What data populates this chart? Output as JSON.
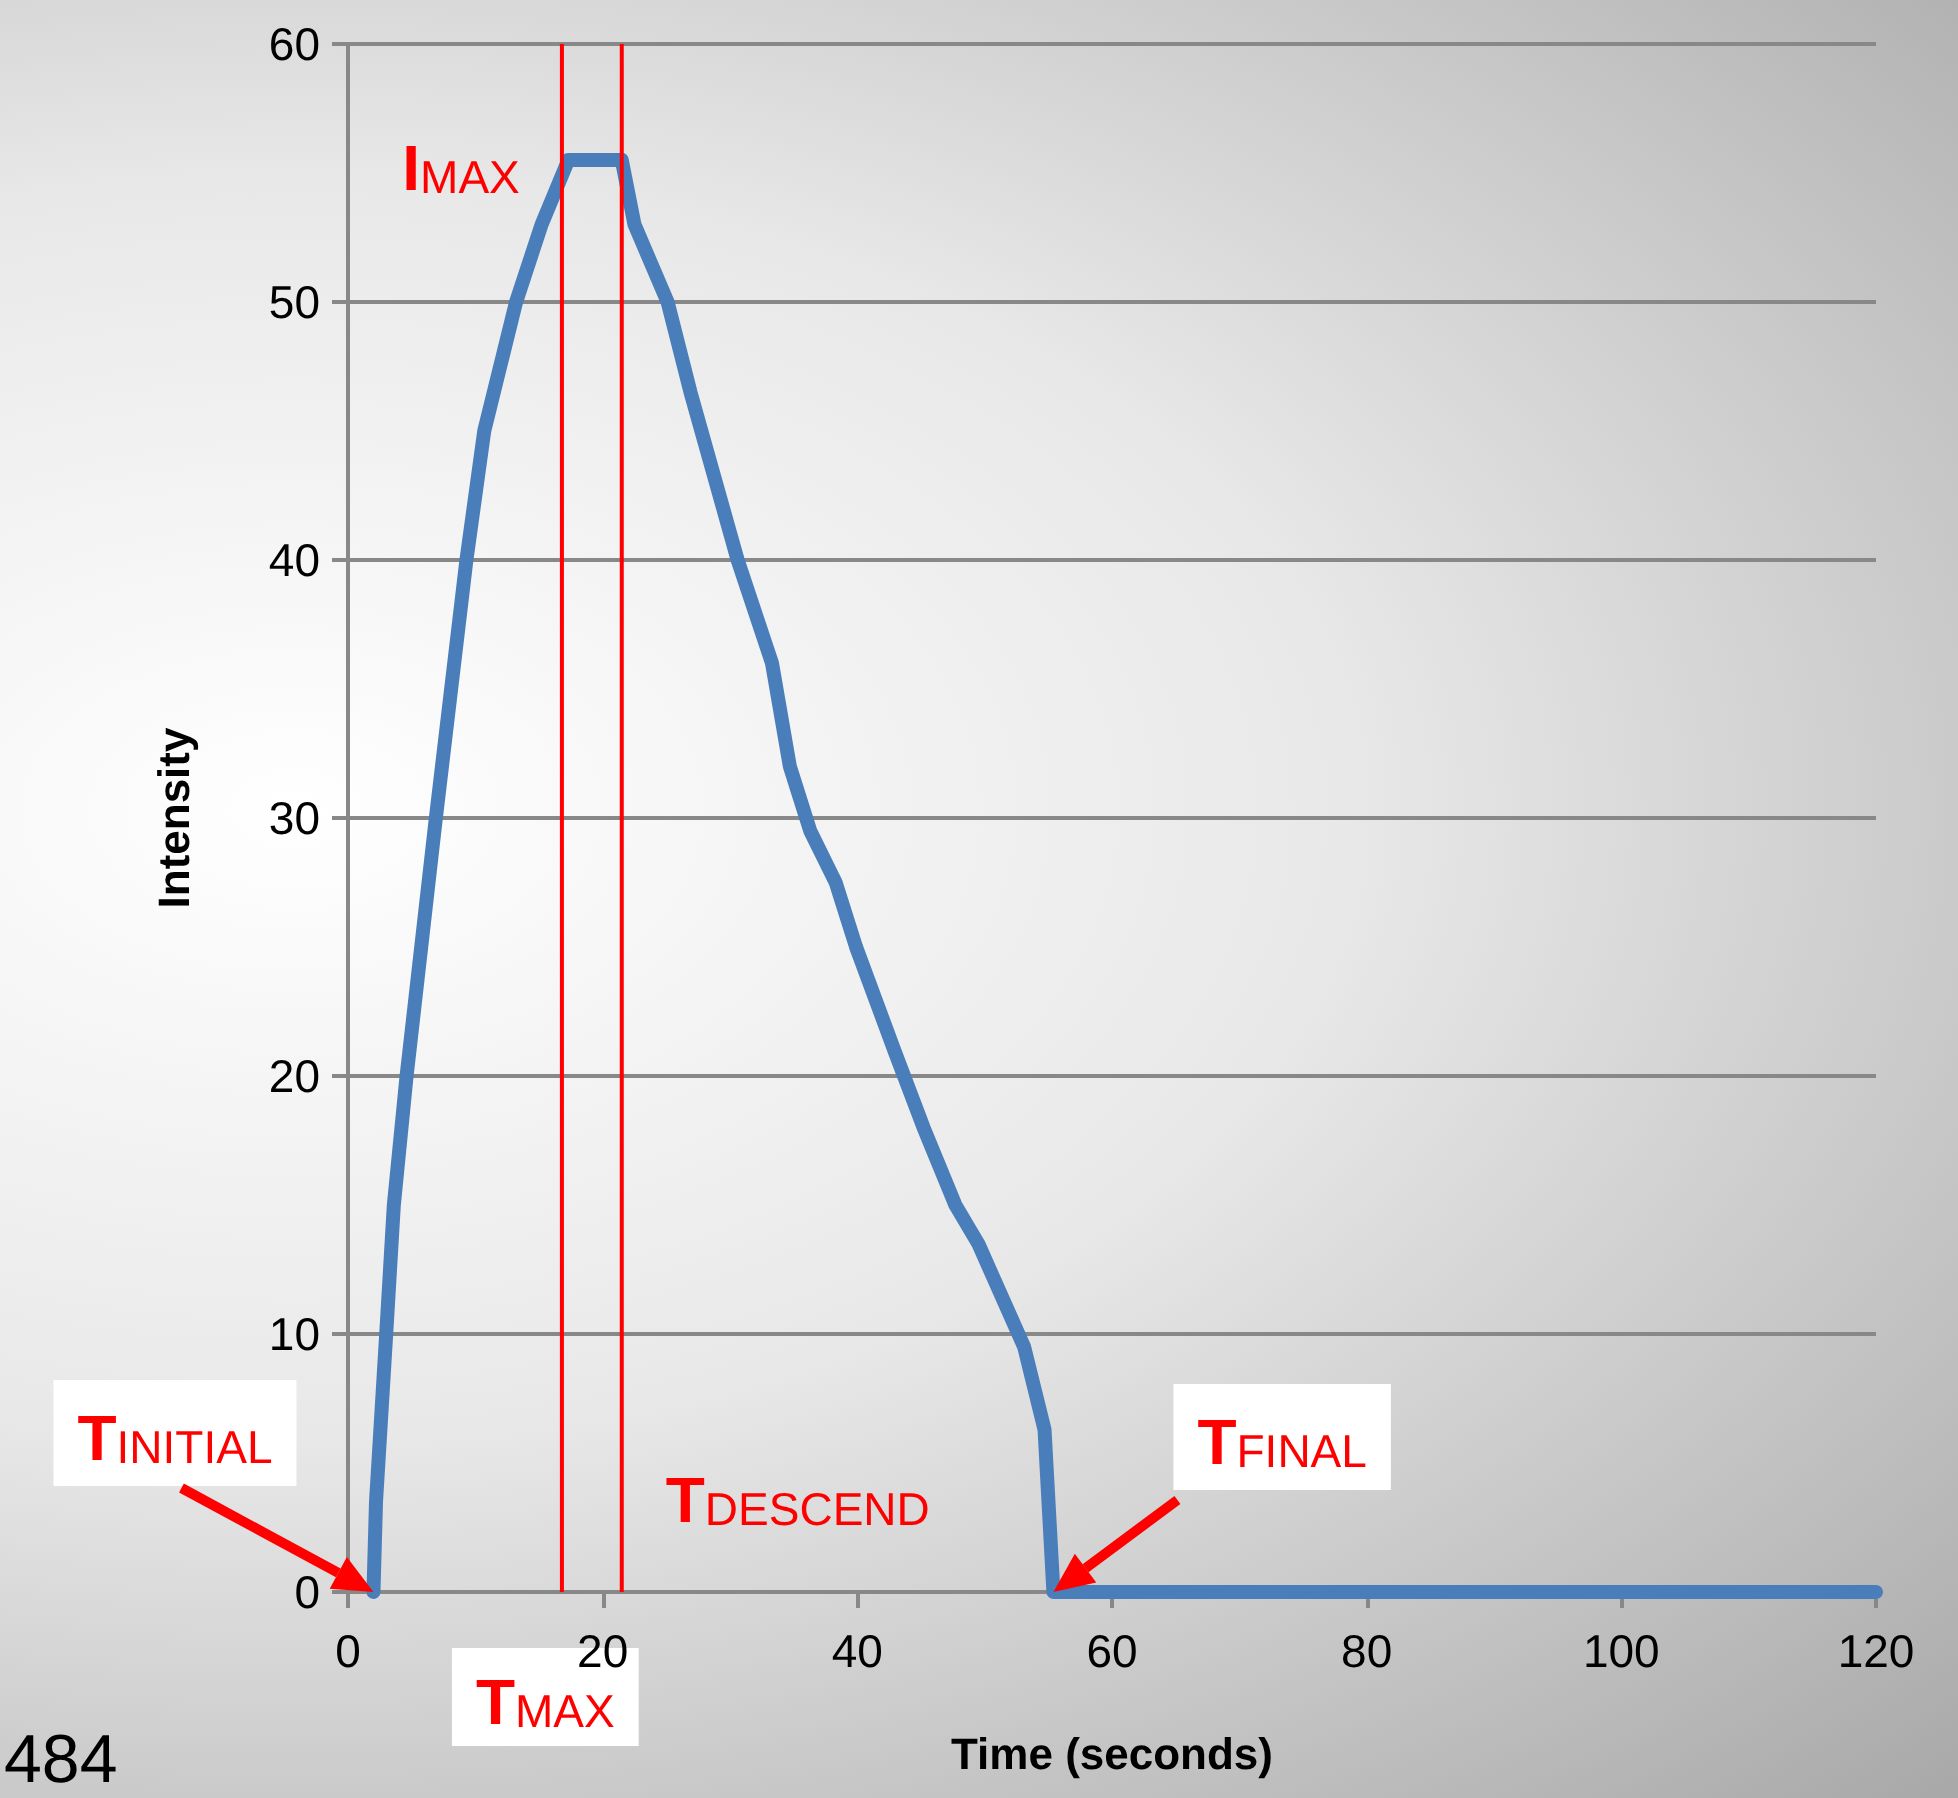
{
  "chart_data": {
    "type": "line",
    "xlabel": "Time (seconds)",
    "ylabel": "Intensity",
    "x": [
      2.0,
      2.2,
      3.0,
      3.6,
      4.6,
      6.9,
      9.3,
      10.7,
      13.2,
      15.2,
      17.3,
      21.5,
      22.5,
      25.1,
      26.9,
      30.6,
      33.3,
      34.7,
      36.3,
      38.3,
      39.9,
      42.9,
      45.2,
      47.7,
      49.5,
      53.1,
      54.7,
      55.4,
      120
    ],
    "series": [
      {
        "color": "#4a7ebb",
        "values": [
          0,
          3.5,
          10,
          15,
          20,
          30,
          40,
          45,
          50,
          53,
          55.5,
          55.5,
          53,
          50,
          46.5,
          40,
          36,
          32,
          29.5,
          27.5,
          25,
          21,
          18,
          15,
          13.5,
          9.5,
          6.3,
          0,
          0
        ]
      }
    ],
    "xlim": [
      0,
      120
    ],
    "xticks": [
      0,
      20,
      40,
      60,
      80,
      100,
      120
    ],
    "ylim": [
      0,
      60
    ],
    "yticks": [
      0,
      10,
      20,
      30,
      40,
      50,
      60
    ],
    "grid": "y",
    "line_style": "solid",
    "ref_lines": [
      {
        "axis": "x",
        "value": 16.8,
        "label": "T$_{MAX}$",
        "color": "#ff0000"
      },
      {
        "axis": "x",
        "value": 21.5,
        "label": "T$_{DESCEND}$",
        "color": "#ff0000"
      }
    ],
    "annotations": [
      {
        "text": "I$_{MAX}$",
        "x": 17.3,
        "y": 55.5
      },
      {
        "text": "T$_{INITIAL}$",
        "x": 2.0,
        "y": 0
      },
      {
        "text": "T$_{FINAL}$",
        "x": 55.4,
        "y": 0
      },
      "484"
    ]
  }
}
